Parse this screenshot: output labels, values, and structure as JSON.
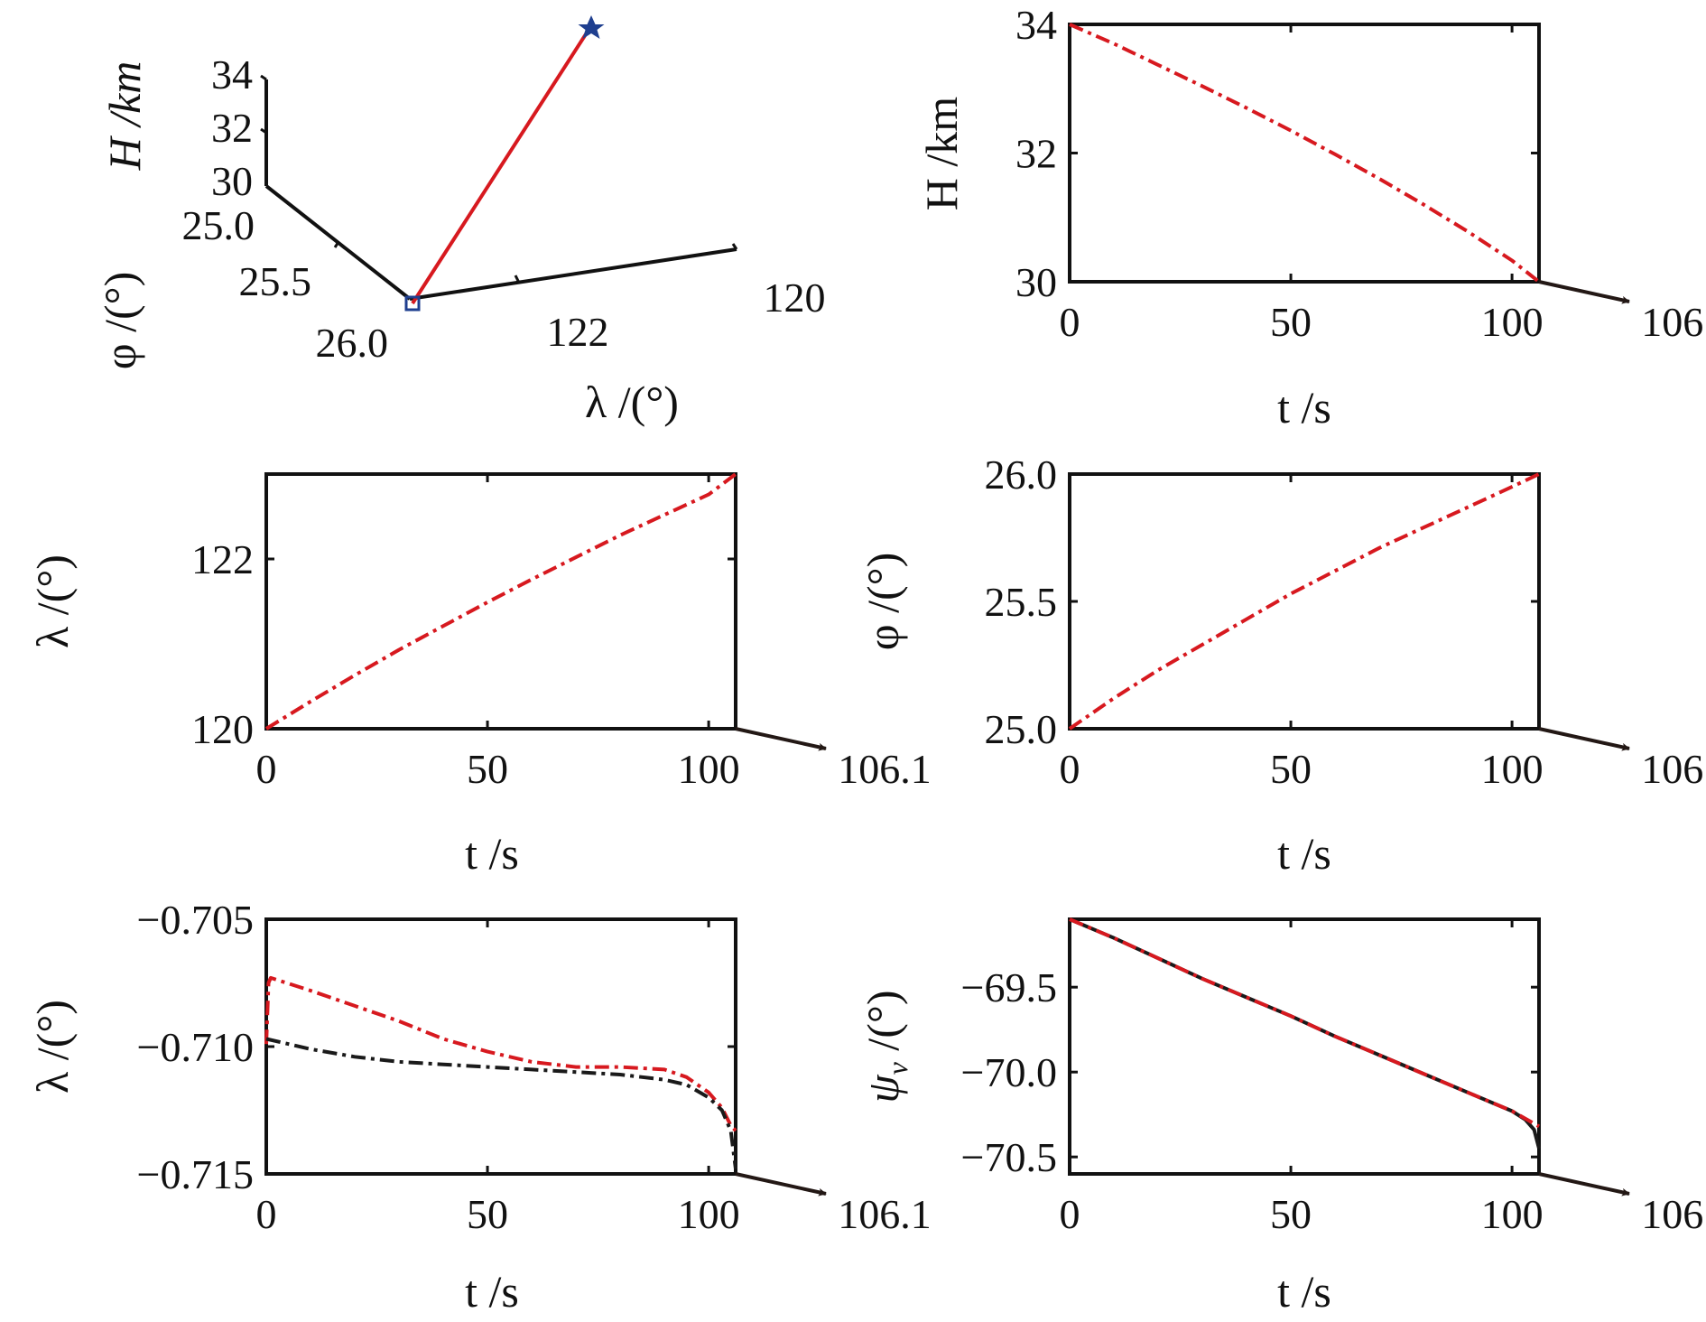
{
  "colors": {
    "red": "#d7191f",
    "black": "#1a1a1a",
    "axis": "#111111",
    "marker_blue": "#1f3f8f",
    "arrow": "#231815"
  },
  "chart_data": [
    {
      "id": "trajectory3d",
      "type": "line3d",
      "xlabel": "λ /(°)",
      "ylabel": "φ /(°)",
      "zlabel": "H /km",
      "lambda_ticks": [
        "120",
        "122"
      ],
      "phi_ticks": [
        "25.0",
        "25.5",
        "26.0"
      ],
      "h_ticks": [
        "30",
        "32",
        "34"
      ],
      "series": [
        {
          "name": "trajectory",
          "color": "red",
          "lambda": [
            120,
            123
          ],
          "phi": [
            25,
            26
          ],
          "H": [
            34,
            30
          ]
        }
      ],
      "markers": [
        {
          "name": "start",
          "symbol": "star",
          "lambda": 120,
          "phi": 25,
          "H": 34
        },
        {
          "name": "end",
          "symbol": "square",
          "lambda": 123,
          "phi": 26,
          "H": 30
        }
      ]
    },
    {
      "id": "h_t",
      "type": "line",
      "xlabel": "t /s",
      "ylabel": "H /km",
      "xlim": [
        0,
        106.1
      ],
      "ylim": [
        30,
        34
      ],
      "xticks": [
        "0",
        "50",
        "100"
      ],
      "xticks_values": [
        0,
        50,
        100
      ],
      "yticks": [
        "30",
        "32",
        "34"
      ],
      "yticks_values": [
        30,
        32,
        34
      ],
      "arrow_label": "106.1",
      "series": [
        {
          "name": "H",
          "color": "red",
          "dash": "dashdot",
          "x": [
            0,
            10,
            20,
            30,
            40,
            50,
            60,
            70,
            80,
            90,
            100,
            106.1
          ],
          "y": [
            34,
            33.7,
            33.37,
            33.04,
            32.7,
            32.35,
            31.98,
            31.6,
            31.2,
            30.78,
            30.33,
            30.0
          ]
        }
      ]
    },
    {
      "id": "lambda_t",
      "type": "line",
      "xlabel": "t /s",
      "ylabel": "λ /(°)",
      "xlim": [
        0,
        106.1
      ],
      "ylim": [
        120,
        123
      ],
      "xticks": [
        "0",
        "50",
        "100"
      ],
      "xticks_values": [
        0,
        50,
        100
      ],
      "yticks": [
        "120",
        "122"
      ],
      "yticks_values": [
        120,
        122
      ],
      "arrow_label": "106.1",
      "series": [
        {
          "name": "lambda",
          "color": "red",
          "dash": "dashdot",
          "x": [
            0,
            10,
            20,
            30,
            40,
            50,
            60,
            70,
            80,
            90,
            100,
            106.1
          ],
          "y": [
            120,
            120.32,
            120.63,
            120.93,
            121.21,
            121.49,
            121.76,
            122.02,
            122.28,
            122.52,
            122.76,
            123.0
          ]
        }
      ]
    },
    {
      "id": "phi_t",
      "type": "line",
      "xlabel": "t /s",
      "ylabel": "φ /(°)",
      "xlim": [
        0,
        106.1
      ],
      "ylim": [
        25,
        26
      ],
      "xticks": [
        "0",
        "50",
        "100"
      ],
      "xticks_values": [
        0,
        50,
        100
      ],
      "yticks": [
        "25.0",
        "25.5",
        "26.0"
      ],
      "yticks_values": [
        25,
        25.5,
        26
      ],
      "arrow_label": "106.1",
      "series": [
        {
          "name": "phi",
          "color": "red",
          "dash": "dashdot",
          "x": [
            0,
            10,
            20,
            30,
            40,
            50,
            60,
            70,
            80,
            90,
            100,
            106.1
          ],
          "y": [
            25,
            25.12,
            25.23,
            25.33,
            25.43,
            25.53,
            25.62,
            25.71,
            25.79,
            25.87,
            25.95,
            26.0
          ]
        }
      ]
    },
    {
      "id": "lambda2_t",
      "type": "line",
      "xlabel": "t /s",
      "ylabel": "λ /(°)",
      "xlim": [
        0,
        106.1
      ],
      "ylim": [
        -0.715,
        -0.705
      ],
      "xticks": [
        "0",
        "50",
        "100"
      ],
      "xticks_values": [
        0,
        50,
        100
      ],
      "yticks": [
        "−0.715",
        "−0.710",
        "−0.705"
      ],
      "yticks_values": [
        -0.715,
        -0.71,
        -0.705
      ],
      "arrow_label": "106.1",
      "series": [
        {
          "name": "red",
          "color": "red",
          "dash": "dashdot",
          "x": [
            0,
            0.5,
            1,
            10,
            20,
            30,
            40,
            50,
            60,
            70,
            80,
            90,
            95,
            100,
            103,
            105,
            106.1
          ],
          "y": [
            -0.7099,
            -0.7075,
            -0.7073,
            -0.7078,
            -0.7084,
            -0.709,
            -0.7097,
            -0.7102,
            -0.7106,
            -0.7108,
            -0.7108,
            -0.7109,
            -0.7112,
            -0.7118,
            -0.7124,
            -0.7131,
            -0.7133
          ]
        },
        {
          "name": "black",
          "color": "black",
          "dash": "dashdot",
          "x": [
            0,
            10,
            20,
            30,
            40,
            50,
            60,
            70,
            80,
            90,
            95,
            100,
            103,
            105,
            106.1
          ],
          "y": [
            -0.7097,
            -0.7101,
            -0.7104,
            -0.7106,
            -0.7107,
            -0.7108,
            -0.7109,
            -0.711,
            -0.7111,
            -0.7113,
            -0.7115,
            -0.712,
            -0.7125,
            -0.7133,
            -0.7148
          ]
        }
      ]
    },
    {
      "id": "psi_t",
      "type": "line",
      "xlabel": "t /s",
      "ylabel": "ψ",
      "ylabel_sub": "v",
      "ylabel_unit": " /(°)",
      "xlim": [
        0,
        106.1
      ],
      "ylim": [
        -70.6,
        -69.1
      ],
      "xticks": [
        "0",
        "50",
        "100"
      ],
      "xticks_values": [
        0,
        50,
        100
      ],
      "yticks": [
        "−69.5",
        "−70.0",
        "−70.5"
      ],
      "yticks_values": [
        -69.5,
        -70,
        -70.5
      ],
      "arrow_label": "106.1",
      "series": [
        {
          "name": "black",
          "color": "black",
          "dash": "solid",
          "x": [
            0,
            10,
            20,
            30,
            40,
            50,
            60,
            70,
            80,
            90,
            100,
            103,
            105,
            106.1
          ],
          "y": [
            -69.1,
            -69.21,
            -69.33,
            -69.45,
            -69.56,
            -69.67,
            -69.79,
            -69.9,
            -70.01,
            -70.12,
            -70.23,
            -70.28,
            -70.34,
            -70.45
          ]
        },
        {
          "name": "red",
          "color": "red",
          "dash": "dashdot",
          "x": [
            0,
            10,
            20,
            30,
            40,
            50,
            60,
            70,
            80,
            90,
            100,
            106.1
          ],
          "y": [
            -69.1,
            -69.21,
            -69.33,
            -69.45,
            -69.56,
            -69.67,
            -69.79,
            -69.9,
            -70.01,
            -70.12,
            -70.23,
            -70.32
          ]
        }
      ]
    }
  ]
}
